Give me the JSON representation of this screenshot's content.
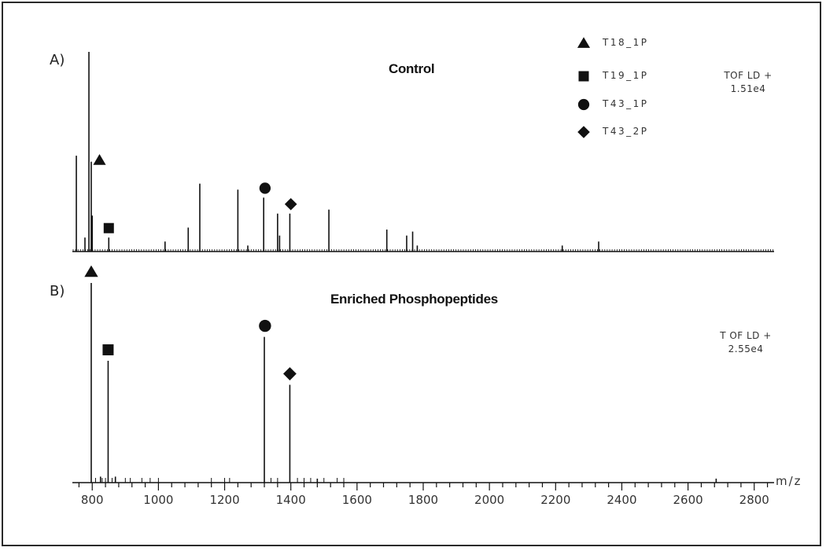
{
  "chart_data": [
    {
      "type": "bar",
      "panel": "A)",
      "title": "Control",
      "annotation": [
        "TOF LD +",
        "1.51e4"
      ],
      "xlabel": "m/z",
      "xlim": [
        740,
        2860
      ],
      "ylim": [
        0,
        1
      ],
      "markers": [
        {
          "label": "T18_1P",
          "symbol": "triangle",
          "mz": 822,
          "peak": 0.41
        },
        {
          "label": "T19_1P",
          "symbol": "square",
          "mz": 850,
          "peak": 0.07
        },
        {
          "label": "T43_1P",
          "symbol": "circle",
          "mz": 1322,
          "peak": 0.27
        },
        {
          "label": "T43_2P",
          "symbol": "diamond",
          "mz": 1400,
          "peak": 0.19
        }
      ],
      "peaks": [
        {
          "mz": 752,
          "intensity": 0.48
        },
        {
          "mz": 778,
          "intensity": 0.07
        },
        {
          "mz": 790,
          "intensity": 1.0
        },
        {
          "mz": 797,
          "intensity": 0.45
        },
        {
          "mz": 800,
          "intensity": 0.18
        },
        {
          "mz": 850,
          "intensity": 0.07
        },
        {
          "mz": 1020,
          "intensity": 0.05
        },
        {
          "mz": 1090,
          "intensity": 0.12
        },
        {
          "mz": 1125,
          "intensity": 0.34
        },
        {
          "mz": 1240,
          "intensity": 0.31
        },
        {
          "mz": 1270,
          "intensity": 0.03
        },
        {
          "mz": 1318,
          "intensity": 0.27
        },
        {
          "mz": 1360,
          "intensity": 0.19
        },
        {
          "mz": 1366,
          "intensity": 0.08
        },
        {
          "mz": 1397,
          "intensity": 0.19
        },
        {
          "mz": 1515,
          "intensity": 0.21
        },
        {
          "mz": 1690,
          "intensity": 0.11
        },
        {
          "mz": 1750,
          "intensity": 0.08
        },
        {
          "mz": 1768,
          "intensity": 0.1
        },
        {
          "mz": 1782,
          "intensity": 0.03
        },
        {
          "mz": 2220,
          "intensity": 0.03
        },
        {
          "mz": 2330,
          "intensity": 0.05
        }
      ]
    },
    {
      "type": "bar",
      "panel": "B)",
      "title": "Enriched Phosphopeptides",
      "annotation": [
        "T OF LD +",
        "2.55e4"
      ],
      "xlabel": "m/z",
      "xlim": [
        740,
        2860
      ],
      "ylim": [
        0,
        1
      ],
      "xticks": [
        800,
        1000,
        1200,
        1400,
        1600,
        1800,
        2000,
        2200,
        2400,
        2600,
        2800
      ],
      "markers": [
        {
          "label": "T18_1P",
          "symbol": "triangle",
          "mz": 797,
          "peak": 1.0
        },
        {
          "label": "T19_1P",
          "symbol": "square",
          "mz": 848,
          "peak": 0.61
        },
        {
          "label": "T43_1P",
          "symbol": "circle",
          "mz": 1322,
          "peak": 0.73
        },
        {
          "label": "T43_2P",
          "symbol": "diamond",
          "mz": 1397,
          "peak": 0.49
        }
      ],
      "peaks": [
        {
          "mz": 797,
          "intensity": 1.0
        },
        {
          "mz": 848,
          "intensity": 0.61
        },
        {
          "mz": 1320,
          "intensity": 0.73
        },
        {
          "mz": 1397,
          "intensity": 0.49
        },
        {
          "mz": 825,
          "intensity": 0.03
        },
        {
          "mz": 870,
          "intensity": 0.03
        },
        {
          "mz": 1480,
          "intensity": 0.02
        },
        {
          "mz": 2685,
          "intensity": 0.02
        }
      ]
    }
  ],
  "legend": [
    {
      "label": "T18_1P",
      "symbol": "triangle"
    },
    {
      "label": "T19_1P",
      "symbol": "square"
    },
    {
      "label": "T43_1P",
      "symbol": "circle"
    },
    {
      "label": "T43_2P",
      "symbol": "diamond"
    }
  ],
  "colors": {
    "ink": "#111111",
    "frame": "#2a2a2a"
  }
}
